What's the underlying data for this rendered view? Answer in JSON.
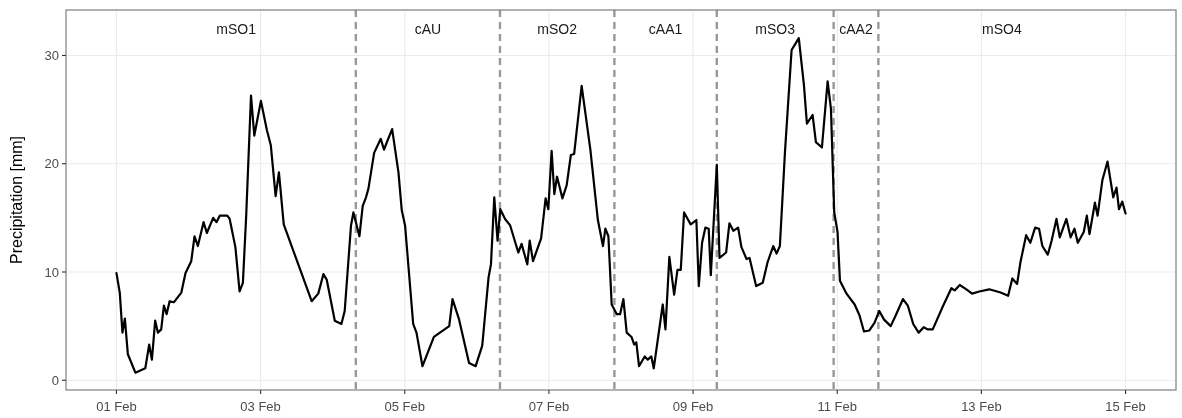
{
  "chart_data": {
    "type": "line",
    "ylabel": "Precipitation [mm]",
    "xlim": [
      "--01-31T07:12",
      "--02-15T16:48"
    ],
    "ylim": [
      -0.9,
      34.2
    ],
    "xticks": [
      {
        "value": "--02-01",
        "label": "01 Feb"
      },
      {
        "value": "--02-03",
        "label": "03 Feb"
      },
      {
        "value": "--02-05",
        "label": "05 Feb"
      },
      {
        "value": "--02-07",
        "label": "07 Feb"
      },
      {
        "value": "--02-09",
        "label": "09 Feb"
      },
      {
        "value": "--02-11",
        "label": "11 Feb"
      },
      {
        "value": "--02-13",
        "label": "13 Feb"
      },
      {
        "value": "--02-15",
        "label": "15 Feb"
      }
    ],
    "yticks": [
      0,
      10,
      20,
      30
    ],
    "grid": true,
    "line_style": "solid",
    "series": [
      {
        "color": "#000000",
        "x": [
          "--02-01T00:00",
          "--02-01T01:06",
          "--02-01T02:00",
          "--02-01T02:48",
          "--02-01T03:48",
          "--02-01T06:18",
          "--02-01T09:36",
          "--02-01T10:54",
          "--02-01T11:48",
          "--02-01T12:54",
          "--02-01T13:48",
          "--02-01T14:54",
          "--02-01T15:48",
          "--02-01T16:42",
          "--02-01T17:42",
          "--02-01T19:06",
          "--02-01T21:36",
          "--02-01T23:00",
          "--02-02T00:54",
          "--02-02T02:00",
          "--02-02T03:06",
          "--02-02T05:00",
          "--02-02T06:06",
          "--02-02T08:12",
          "--02-02T09:18",
          "--02-02T10:24",
          "--02-02T12:54",
          "--02-02T13:42",
          "--02-02T15:36",
          "--02-02T17:00",
          "--02-02T18:06",
          "--02-02T19:12",
          "--02-02T20:48",
          "--02-02T21:54",
          "--02-03T00:06",
          "--02-03T02:06",
          "--02-03T03:24",
          "--02-03T05:00",
          "--02-03T06:06",
          "--02-03T07:42",
          "--02-03T17:00",
          "--02-03T19:12",
          "--02-03T20:54",
          "--02-03T22:00",
          "--02-04T00:42",
          "--02-04T02:54",
          "--02-04T04:00",
          "--02-04T06:06",
          "--02-04T06:54",
          "--02-04T08:54",
          "--02-04T10:00",
          "--02-04T11:06",
          "--02-04T11:54",
          "--02-04T13:48",
          "--02-04T16:00",
          "--02-04T17:06",
          "--02-04T18:12",
          "--02-04T19:48",
          "--02-04T21:54",
          "--02-04T23:00",
          "--02-05T00:06",
          "--02-05T02:48",
          "--02-05T03:54",
          "--02-05T05:54",
          "--02-05T09:42",
          "--02-05T14:48",
          "--02-05T15:54",
          "--02-05T18:06",
          "--02-05T21:24",
          "--02-05T23:36",
          "--02-06T01:48",
          "--02-06T03:54",
          "--02-06T04:42",
          "--02-06T05:48",
          "--02-06T06:54",
          "--02-06T07:48",
          "--02-06T09:24",
          "--02-06T11:06",
          "--02-06T13:48",
          "--02-06T14:54",
          "--02-06T16:48",
          "--02-06T17:36",
          "--02-06T18:42",
          "--02-06T21:24",
          "--02-06T22:54",
          "--02-06T23:48",
          "--02-07T00:54",
          "--02-07T01:48",
          "--02-07T02:42",
          "--02-07T04:30",
          "--02-07T05:54",
          "--02-07T07:18",
          "--02-07T08:24",
          "--02-07T10:54",
          "--02-07T13:48",
          "--02-07T16:18",
          "--02-07T18:00",
          "--02-07T18:48",
          "--02-07T19:48",
          "--02-07T20:54",
          "--02-07T22:36",
          "--02-07T23:42",
          "--02-08T00:48",
          "--02-08T01:54",
          "--02-08T03:30",
          "--02-08T04:24",
          "--02-08T05:06",
          "--02-08T06:00",
          "--02-08T07:54",
          "--02-08T08:54",
          "--02-08T10:06",
          "--02-08T10:54",
          "--02-08T13:54",
          "--02-08T14:48",
          "--02-08T16:06",
          "--02-08T17:42",
          "--02-08T18:48",
          "--02-08T19:54",
          "--02-08T21:00",
          "--02-08T23:12",
          "--02-09T01:06",
          "--02-09T01:54",
          "--02-09T03:00",
          "--02-09T04:06",
          "--02-09T05:12",
          "--02-09T05:54",
          "--02-09T07:54",
          "--02-09T08:48",
          "--02-09T11:00",
          "--02-09T12:06",
          "--02-09T13:24",
          "--02-09T15:00",
          "--02-09T16:06",
          "--02-09T17:48",
          "--02-09T18:48",
          "--02-09T21:00",
          "--02-09T23:12",
          "--02-10T00:48",
          "--02-10T02:42",
          "--02-10T03:48",
          "--02-10T04:54",
          "--02-10T06:36",
          "--02-10T08:48",
          "--02-10T10:06",
          "--02-10T11:12",
          "--02-10T12:54",
          "--02-10T13:54",
          "--02-10T15:48",
          "--02-10T16:54",
          "--02-10T18:54",
          "--02-10T20:48",
          "--02-10T21:54",
          "--02-10T23:00",
          "--02-11T00:06",
          "--02-11T00:54",
          "--02-11T03:06",
          "--02-11T05:48",
          "--02-11T07:24",
          "--02-11T08:54",
          "--02-11T10:42",
          "--02-11T12:24",
          "--02-11T14:00",
          "--02-11T15:36",
          "--02-11T17:48",
          "--02-11T19:30",
          "--02-11T21:54",
          "--02-11T23:30",
          "--02-12T01:18",
          "--02-12T03:06",
          "--02-12T04:48",
          "--02-12T06:06",
          "--02-12T07:48",
          "--02-12T11:18",
          "--02-12T14:00",
          "--02-12T15:06",
          "--02-12T16:48",
          "--02-12T19:00",
          "--02-12T20:54",
          "--02-12T23:18",
          "--02-13T02:36",
          "--02-13T06:24",
          "--02-13T08:54",
          "--02-13T10:18",
          "--02-13T11:54",
          "--02-13T13:00",
          "--02-13T14:54",
          "--02-13T16:18",
          "--02-13T17:54",
          "--02-13T19:12",
          "--02-13T20:18",
          "--02-13T22:06",
          "--02-13T23:24",
          "--02-14T01:00",
          "--02-14T02:06",
          "--02-14T04:18",
          "--02-14T05:42",
          "--02-14T07:00",
          "--02-14T08:06",
          "--02-14T10:06",
          "--02-14T11:06",
          "--02-14T12:00",
          "--02-14T13:48",
          "--02-14T14:42",
          "--02-14T16:18",
          "--02-14T18:00",
          "--02-14T19:54",
          "--02-14T21:00",
          "--02-14T21:48",
          "--02-14T22:54",
          "--02-15T00:00"
        ],
        "values": [
          9.9,
          8.1,
          4.4,
          5.7,
          2.4,
          0.7,
          1.1,
          3.3,
          1.9,
          5.5,
          4.4,
          4.7,
          6.9,
          6.1,
          7.3,
          7.2,
          8.1,
          9.9,
          11.0,
          13.3,
          12.4,
          14.6,
          13.6,
          15.0,
          14.6,
          15.2,
          15.2,
          14.9,
          12.3,
          8.2,
          9.0,
          15.2,
          26.3,
          22.6,
          25.8,
          23.1,
          21.7,
          17.0,
          19.2,
          14.4,
          7.3,
          8.0,
          9.8,
          9.3,
          5.5,
          5.2,
          6.4,
          14.3,
          15.5,
          13.3,
          16.1,
          16.9,
          17.7,
          21.0,
          22.3,
          21.3,
          22.1,
          23.2,
          19.2,
          15.7,
          14.3,
          5.2,
          4.4,
          1.3,
          4.0,
          5.0,
          7.5,
          5.6,
          1.6,
          1.3,
          3.2,
          9.5,
          10.7,
          16.9,
          12.9,
          15.8,
          14.9,
          14.3,
          11.8,
          12.6,
          10.7,
          12.9,
          11.0,
          13.1,
          16.8,
          15.8,
          21.2,
          17.2,
          18.8,
          16.8,
          18.0,
          20.8,
          20.9,
          27.2,
          21.3,
          14.8,
          12.4,
          14.0,
          13.3,
          7.0,
          6.1,
          6.1,
          7.5,
          4.4,
          4.0,
          3.3,
          3.5,
          1.3,
          2.2,
          1.9,
          2.2,
          1.1,
          7.0,
          4.7,
          11.4,
          7.9,
          10.2,
          10.2,
          15.5,
          14.4,
          14.8,
          8.7,
          12.7,
          14.1,
          14.0,
          9.7,
          19.9,
          11.3,
          11.8,
          14.5,
          13.8,
          14.1,
          12.3,
          11.2,
          11.3,
          8.7,
          9.0,
          10.9,
          12.4,
          11.7,
          12.4,
          21.1,
          30.5,
          31.1,
          31.6,
          27.3,
          23.7,
          24.5,
          22.0,
          21.5,
          27.6,
          25.1,
          15.5,
          13.7,
          9.2,
          8.0,
          7.0,
          6.0,
          4.5,
          4.6,
          5.3,
          6.4,
          5.6,
          5.0,
          6.0,
          7.5,
          6.9,
          5.2,
          4.4,
          4.9,
          4.7,
          4.7,
          6.9,
          8.5,
          8.3,
          8.8,
          8.4,
          8.0,
          8.2,
          8.4,
          8.1,
          7.8,
          9.4,
          8.9,
          10.9,
          13.4,
          12.7,
          14.1,
          14.0,
          12.4,
          11.6,
          12.9,
          14.9,
          13.2,
          14.9,
          13.2,
          14.0,
          12.7,
          13.7,
          15.2,
          13.5,
          16.4,
          15.2,
          18.5,
          20.2,
          16.9,
          17.8,
          15.8,
          16.5,
          15.4
        ]
      }
    ],
    "ref_lines": [
      {
        "axis": "x",
        "value": "--02-04T07:42",
        "color": "#999999",
        "line_style": "dashed"
      },
      {
        "axis": "x",
        "value": "--02-06T07:42",
        "color": "#999999",
        "line_style": "dashed"
      },
      {
        "axis": "x",
        "value": "--02-07T21:48",
        "color": "#999999",
        "line_style": "dashed"
      },
      {
        "axis": "x",
        "value": "--02-09T07:54",
        "color": "#999999",
        "line_style": "dashed"
      },
      {
        "axis": "x",
        "value": "--02-10T22:48",
        "color": "#999999",
        "line_style": "dashed"
      },
      {
        "axis": "x",
        "value": "--02-11T13:42",
        "color": "#999999",
        "line_style": "dashed"
      }
    ],
    "annotations": [
      "mSO1",
      "cAU",
      "mSO2",
      "cAA1",
      "mSO3",
      "cAA2",
      "mSO4"
    ]
  }
}
